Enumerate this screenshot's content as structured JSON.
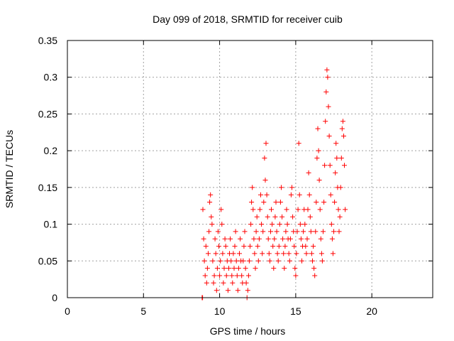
{
  "chart_data": {
    "type": "scatter",
    "title": "Day 099 of 2018, SRMTID for receiver cuib",
    "xlabel": "GPS time / hours",
    "ylabel": "SRMTID / TECUs",
    "xlim": [
      0,
      24
    ],
    "ylim": [
      0,
      0.35
    ],
    "x_ticks": [
      0,
      5,
      10,
      15,
      20
    ],
    "y_ticks": [
      0,
      0.05,
      0.1,
      0.15,
      0.2,
      0.25,
      0.3,
      0.35
    ],
    "x_tick_labels": [
      "0",
      "5",
      "10",
      "15",
      "20"
    ],
    "y_tick_labels": [
      "0",
      "0.05",
      "0.1",
      "0.15",
      "0.2",
      "0.25",
      "0.3",
      "0.35"
    ],
    "grid": true,
    "marker": "+",
    "series": [
      {
        "name": "SRMTID",
        "color": "#ff0000",
        "points": [
          [
            8.85,
            0.0
          ],
          [
            8.88,
            0.0
          ],
          [
            8.9,
            0.12
          ],
          [
            8.95,
            0.08
          ],
          [
            9.0,
            0.05
          ],
          [
            9.05,
            0.03
          ],
          [
            9.1,
            0.07
          ],
          [
            9.15,
            0.02
          ],
          [
            9.2,
            0.04
          ],
          [
            9.25,
            0.06
          ],
          [
            9.3,
            0.09
          ],
          [
            9.35,
            0.13
          ],
          [
            9.4,
            0.14
          ],
          [
            9.45,
            0.11
          ],
          [
            9.5,
            0.1
          ],
          [
            9.55,
            0.05
          ],
          [
            9.6,
            0.02
          ],
          [
            9.65,
            0.03
          ],
          [
            9.7,
            0.08
          ],
          [
            9.75,
            0.06
          ],
          [
            9.8,
            0.01
          ],
          [
            9.85,
            0.04
          ],
          [
            9.9,
            0.09
          ],
          [
            9.95,
            0.07
          ],
          [
            10.0,
            0.03
          ],
          [
            10.05,
            0.05
          ],
          [
            10.1,
            0.12
          ],
          [
            10.15,
            0.1
          ],
          [
            10.2,
            0.06
          ],
          [
            10.25,
            0.02
          ],
          [
            10.3,
            0.04
          ],
          [
            10.35,
            0.08
          ],
          [
            10.4,
            0.07
          ],
          [
            10.45,
            0.03
          ],
          [
            10.5,
            0.05
          ],
          [
            10.55,
            0.01
          ],
          [
            10.6,
            0.04
          ],
          [
            10.65,
            0.06
          ],
          [
            10.7,
            0.08
          ],
          [
            10.75,
            0.05
          ],
          [
            10.8,
            0.03
          ],
          [
            10.85,
            0.02
          ],
          [
            10.9,
            0.06
          ],
          [
            10.95,
            0.04
          ],
          [
            11.0,
            0.07
          ],
          [
            11.05,
            0.09
          ],
          [
            11.1,
            0.05
          ],
          [
            11.15,
            0.03
          ],
          [
            11.2,
            0.01
          ],
          [
            11.25,
            0.04
          ],
          [
            11.3,
            0.06
          ],
          [
            11.35,
            0.08
          ],
          [
            11.4,
            0.05
          ],
          [
            11.45,
            0.03
          ],
          [
            11.5,
            0.02
          ],
          [
            11.55,
            0.05
          ],
          [
            11.6,
            0.07
          ],
          [
            11.65,
            0.09
          ],
          [
            11.7,
            0.04
          ],
          [
            11.75,
            0.02
          ],
          [
            11.8,
            0.0
          ],
          [
            11.85,
            0.01
          ],
          [
            11.9,
            0.03
          ],
          [
            11.95,
            0.05
          ],
          [
            12.0,
            0.07
          ],
          [
            12.05,
            0.1
          ],
          [
            12.1,
            0.13
          ],
          [
            12.15,
            0.15
          ],
          [
            12.2,
            0.12
          ],
          [
            12.25,
            0.08
          ],
          [
            12.3,
            0.06
          ],
          [
            12.35,
            0.04
          ],
          [
            12.4,
            0.09
          ],
          [
            12.45,
            0.11
          ],
          [
            12.5,
            0.07
          ],
          [
            12.55,
            0.05
          ],
          [
            12.6,
            0.08
          ],
          [
            12.65,
            0.12
          ],
          [
            12.7,
            0.14
          ],
          [
            12.75,
            0.1
          ],
          [
            12.8,
            0.06
          ],
          [
            12.85,
            0.09
          ],
          [
            12.9,
            0.13
          ],
          [
            12.95,
            0.19
          ],
          [
            13.0,
            0.16
          ],
          [
            13.05,
            0.21
          ],
          [
            13.1,
            0.14
          ],
          [
            13.15,
            0.11
          ],
          [
            13.2,
            0.08
          ],
          [
            13.25,
            0.06
          ],
          [
            13.3,
            0.05
          ],
          [
            13.35,
            0.09
          ],
          [
            13.4,
            0.12
          ],
          [
            13.45,
            0.1
          ],
          [
            13.5,
            0.07
          ],
          [
            13.55,
            0.04
          ],
          [
            13.6,
            0.08
          ],
          [
            13.65,
            0.11
          ],
          [
            13.7,
            0.13
          ],
          [
            13.75,
            0.09
          ],
          [
            13.8,
            0.06
          ],
          [
            13.85,
            0.05
          ],
          [
            13.9,
            0.07
          ],
          [
            13.95,
            0.1
          ],
          [
            14.0,
            0.13
          ],
          [
            14.05,
            0.15
          ],
          [
            14.1,
            0.11
          ],
          [
            14.15,
            0.08
          ],
          [
            14.2,
            0.06
          ],
          [
            14.25,
            0.04
          ],
          [
            14.3,
            0.07
          ],
          [
            14.35,
            0.09
          ],
          [
            14.4,
            0.12
          ],
          [
            14.45,
            0.1
          ],
          [
            14.5,
            0.08
          ],
          [
            14.55,
            0.06
          ],
          [
            14.6,
            0.05
          ],
          [
            14.65,
            0.08
          ],
          [
            14.7,
            0.14
          ],
          [
            14.75,
            0.15
          ],
          [
            14.8,
            0.11
          ],
          [
            14.85,
            0.09
          ],
          [
            14.9,
            0.07
          ],
          [
            14.95,
            0.04
          ],
          [
            15.0,
            0.03
          ],
          [
            15.05,
            0.06
          ],
          [
            15.1,
            0.09
          ],
          [
            15.15,
            0.12
          ],
          [
            15.2,
            0.21
          ],
          [
            15.25,
            0.14
          ],
          [
            15.3,
            0.1
          ],
          [
            15.35,
            0.08
          ],
          [
            15.4,
            0.05
          ],
          [
            15.45,
            0.07
          ],
          [
            15.5,
            0.09
          ],
          [
            15.55,
            0.12
          ],
          [
            15.6,
            0.1
          ],
          [
            15.65,
            0.07
          ],
          [
            15.7,
            0.06
          ],
          [
            15.75,
            0.08
          ],
          [
            15.8,
            0.12
          ],
          [
            15.85,
            0.17
          ],
          [
            15.9,
            0.14
          ],
          [
            15.95,
            0.11
          ],
          [
            16.0,
            0.09
          ],
          [
            16.05,
            0.06
          ],
          [
            16.1,
            0.05
          ],
          [
            16.15,
            0.07
          ],
          [
            16.2,
            0.04
          ],
          [
            16.25,
            0.03
          ],
          [
            16.3,
            0.09
          ],
          [
            16.35,
            0.13
          ],
          [
            16.4,
            0.19
          ],
          [
            16.45,
            0.23
          ],
          [
            16.5,
            0.2
          ],
          [
            16.55,
            0.16
          ],
          [
            16.6,
            0.12
          ],
          [
            16.65,
            0.08
          ],
          [
            16.7,
            0.06
          ],
          [
            16.75,
            0.05
          ],
          [
            16.8,
            0.09
          ],
          [
            16.85,
            0.13
          ],
          [
            16.9,
            0.18
          ],
          [
            16.95,
            0.24
          ],
          [
            17.0,
            0.28
          ],
          [
            17.05,
            0.31
          ],
          [
            17.1,
            0.3
          ],
          [
            17.15,
            0.26
          ],
          [
            17.2,
            0.22
          ],
          [
            17.25,
            0.18
          ],
          [
            17.3,
            0.14
          ],
          [
            17.35,
            0.1
          ],
          [
            17.4,
            0.08
          ],
          [
            17.45,
            0.06
          ],
          [
            17.5,
            0.09
          ],
          [
            17.55,
            0.13
          ],
          [
            17.6,
            0.17
          ],
          [
            17.65,
            0.21
          ],
          [
            17.7,
            0.19
          ],
          [
            17.75,
            0.15
          ],
          [
            17.8,
            0.12
          ],
          [
            17.85,
            0.09
          ],
          [
            17.9,
            0.11
          ],
          [
            17.95,
            0.15
          ],
          [
            18.0,
            0.19
          ],
          [
            18.05,
            0.23
          ],
          [
            18.1,
            0.24
          ],
          [
            18.15,
            0.22
          ],
          [
            18.2,
            0.18
          ],
          [
            18.25,
            0.12
          ]
        ]
      }
    ]
  }
}
